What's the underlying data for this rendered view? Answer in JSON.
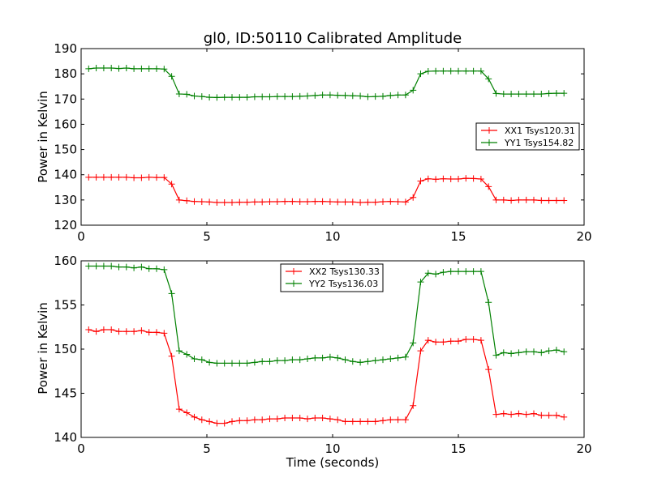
{
  "chart_data": [
    {
      "type": "line",
      "title": "gl0, ID:50110 Calibrated Amplitude",
      "xlabel": "",
      "ylabel": "Power in Kelvin",
      "xlim": [
        0,
        20
      ],
      "ylim": [
        120,
        190
      ],
      "xticks": [
        0,
        5,
        10,
        15,
        20
      ],
      "yticks": [
        120,
        130,
        140,
        150,
        160,
        170,
        180,
        190
      ],
      "grid": false,
      "legend_position": "right",
      "series": [
        {
          "name": "XX1 Tsys120.31",
          "color": "#ff0000",
          "marker": "+",
          "x": [
            0.3,
            0.6,
            0.9,
            1.2,
            1.5,
            1.8,
            2.1,
            2.4,
            2.7,
            3.0,
            3.3,
            3.6,
            3.9,
            4.2,
            4.5,
            4.8,
            5.1,
            5.4,
            5.7,
            6.0,
            6.3,
            6.6,
            6.9,
            7.2,
            7.5,
            7.8,
            8.1,
            8.4,
            8.7,
            9.0,
            9.3,
            9.6,
            9.9,
            10.2,
            10.5,
            10.8,
            11.1,
            11.4,
            11.7,
            12.0,
            12.3,
            12.6,
            12.9,
            13.2,
            13.5,
            13.8,
            14.1,
            14.4,
            14.7,
            15.0,
            15.3,
            15.6,
            15.9,
            16.2,
            16.5,
            16.8,
            17.1,
            17.4,
            17.7,
            18.0,
            18.3,
            18.6,
            18.9,
            19.2
          ],
          "y": [
            139.0,
            139.0,
            139.0,
            139.0,
            139.0,
            139.0,
            138.8,
            138.8,
            139.0,
            138.9,
            138.9,
            136.3,
            130.0,
            129.7,
            129.4,
            129.3,
            129.2,
            129.0,
            129.0,
            129.0,
            129.1,
            129.1,
            129.2,
            129.2,
            129.3,
            129.3,
            129.4,
            129.4,
            129.3,
            129.3,
            129.4,
            129.4,
            129.3,
            129.2,
            129.2,
            129.2,
            129.0,
            129.1,
            129.1,
            129.3,
            129.4,
            129.3,
            129.2,
            131.0,
            137.5,
            138.4,
            138.2,
            138.4,
            138.3,
            138.3,
            138.6,
            138.5,
            138.3,
            135.3,
            130.0,
            130.0,
            129.8,
            130.0,
            130.0,
            130.0,
            129.8,
            129.8,
            129.8,
            129.8
          ]
        },
        {
          "name": "YY1 Tsys154.82",
          "color": "#008000",
          "marker": "+",
          "x": [
            0.3,
            0.6,
            0.9,
            1.2,
            1.5,
            1.8,
            2.1,
            2.4,
            2.7,
            3.0,
            3.3,
            3.6,
            3.9,
            4.2,
            4.5,
            4.8,
            5.1,
            5.4,
            5.7,
            6.0,
            6.3,
            6.6,
            6.9,
            7.2,
            7.5,
            7.8,
            8.1,
            8.4,
            8.7,
            9.0,
            9.3,
            9.6,
            9.9,
            10.2,
            10.5,
            10.8,
            11.1,
            11.4,
            11.7,
            12.0,
            12.3,
            12.6,
            12.9,
            13.2,
            13.5,
            13.8,
            14.1,
            14.4,
            14.7,
            15.0,
            15.3,
            15.6,
            15.9,
            16.2,
            16.5,
            16.8,
            17.1,
            17.4,
            17.7,
            18.0,
            18.3,
            18.6,
            18.9,
            19.2
          ],
          "y": [
            182.0,
            182.3,
            182.3,
            182.3,
            182.1,
            182.3,
            182.0,
            182.0,
            182.0,
            182.0,
            181.9,
            179.0,
            172.0,
            171.9,
            171.2,
            171.0,
            170.7,
            170.6,
            170.7,
            170.7,
            170.7,
            170.7,
            170.9,
            170.9,
            170.9,
            171.0,
            171.0,
            171.0,
            171.1,
            171.2,
            171.4,
            171.6,
            171.6,
            171.5,
            171.4,
            171.3,
            171.2,
            170.9,
            171.0,
            171.1,
            171.4,
            171.6,
            171.6,
            173.5,
            180.0,
            181.0,
            181.1,
            181.1,
            181.1,
            181.1,
            181.1,
            181.1,
            181.1,
            178.0,
            172.2,
            172.0,
            172.0,
            172.0,
            172.0,
            172.0,
            172.0,
            172.2,
            172.3,
            172.3
          ]
        }
      ]
    },
    {
      "type": "line",
      "title": "",
      "xlabel": "Time (seconds)",
      "ylabel": "Power in Kelvin",
      "xlim": [
        0,
        20
      ],
      "ylim": [
        140,
        160
      ],
      "xticks": [
        0,
        5,
        10,
        15,
        20
      ],
      "yticks": [
        140,
        145,
        150,
        155,
        160
      ],
      "grid": false,
      "legend_position": "top-center",
      "series": [
        {
          "name": "XX2 Tsys130.33",
          "color": "#ff0000",
          "marker": "+",
          "x": [
            0.3,
            0.6,
            0.9,
            1.2,
            1.5,
            1.8,
            2.1,
            2.4,
            2.7,
            3.0,
            3.3,
            3.6,
            3.9,
            4.2,
            4.5,
            4.8,
            5.1,
            5.4,
            5.7,
            6.0,
            6.3,
            6.6,
            6.9,
            7.2,
            7.5,
            7.8,
            8.1,
            8.4,
            8.7,
            9.0,
            9.3,
            9.6,
            9.9,
            10.2,
            10.5,
            10.8,
            11.1,
            11.4,
            11.7,
            12.0,
            12.3,
            12.6,
            12.9,
            13.2,
            13.5,
            13.8,
            14.1,
            14.4,
            14.7,
            15.0,
            15.3,
            15.6,
            15.9,
            16.2,
            16.5,
            16.8,
            17.1,
            17.4,
            17.7,
            18.0,
            18.3,
            18.6,
            18.9,
            19.2
          ],
          "y": [
            152.2,
            152.0,
            152.2,
            152.2,
            152.0,
            152.0,
            152.0,
            152.1,
            151.9,
            151.9,
            151.8,
            149.2,
            143.2,
            142.8,
            142.3,
            142.0,
            141.8,
            141.6,
            141.6,
            141.8,
            141.9,
            141.9,
            142.0,
            142.0,
            142.1,
            142.1,
            142.2,
            142.2,
            142.2,
            142.1,
            142.2,
            142.2,
            142.1,
            142.0,
            141.8,
            141.8,
            141.8,
            141.8,
            141.8,
            141.9,
            142.0,
            142.0,
            142.0,
            143.6,
            149.8,
            151.0,
            150.8,
            150.8,
            150.9,
            150.9,
            151.1,
            151.1,
            151.0,
            147.7,
            142.6,
            142.7,
            142.6,
            142.7,
            142.6,
            142.7,
            142.5,
            142.5,
            142.5,
            142.3
          ]
        },
        {
          "name": "YY2 Tsys136.03",
          "color": "#008000",
          "marker": "+",
          "x": [
            0.3,
            0.6,
            0.9,
            1.2,
            1.5,
            1.8,
            2.1,
            2.4,
            2.7,
            3.0,
            3.3,
            3.6,
            3.9,
            4.2,
            4.5,
            4.8,
            5.1,
            5.4,
            5.7,
            6.0,
            6.3,
            6.6,
            6.9,
            7.2,
            7.5,
            7.8,
            8.1,
            8.4,
            8.7,
            9.0,
            9.3,
            9.6,
            9.9,
            10.2,
            10.5,
            10.8,
            11.1,
            11.4,
            11.7,
            12.0,
            12.3,
            12.6,
            12.9,
            13.2,
            13.5,
            13.8,
            14.1,
            14.4,
            14.7,
            15.0,
            15.3,
            15.6,
            15.9,
            16.2,
            16.5,
            16.8,
            17.1,
            17.4,
            17.7,
            18.0,
            18.3,
            18.6,
            18.9,
            19.2
          ],
          "y": [
            159.4,
            159.4,
            159.4,
            159.4,
            159.3,
            159.3,
            159.2,
            159.3,
            159.1,
            159.1,
            159.0,
            156.3,
            149.8,
            149.4,
            148.9,
            148.8,
            148.5,
            148.4,
            148.4,
            148.4,
            148.4,
            148.4,
            148.5,
            148.6,
            148.6,
            148.7,
            148.7,
            148.8,
            148.8,
            148.9,
            149.0,
            149.0,
            149.1,
            149.0,
            148.8,
            148.6,
            148.5,
            148.6,
            148.7,
            148.8,
            148.9,
            149.0,
            149.1,
            150.7,
            157.6,
            158.6,
            158.5,
            158.7,
            158.8,
            158.8,
            158.8,
            158.8,
            158.8,
            155.3,
            149.3,
            149.6,
            149.5,
            149.6,
            149.7,
            149.7,
            149.6,
            149.8,
            149.9,
            149.7
          ]
        }
      ]
    }
  ]
}
